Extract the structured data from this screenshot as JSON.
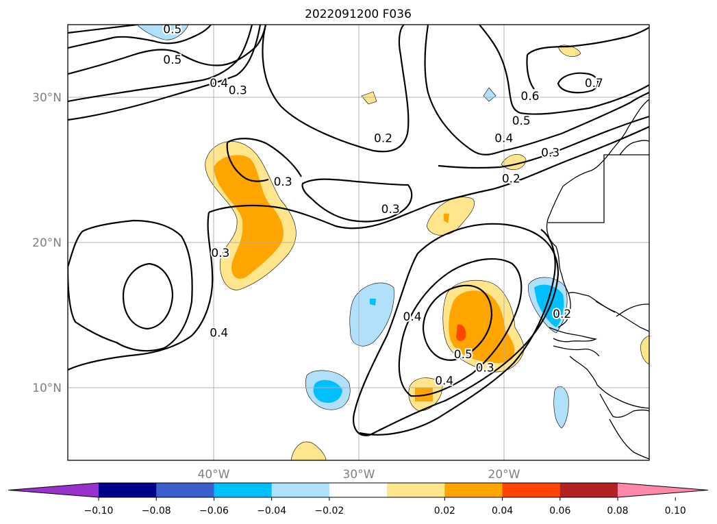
{
  "chart_data": {
    "type": "contour-map",
    "title": "2022091200 F036",
    "lon_range": [
      -50,
      -10
    ],
    "lat_range": [
      5,
      35
    ],
    "grid": true,
    "x_ticks": [
      {
        "lon": -40,
        "label": "40°W"
      },
      {
        "lon": -30,
        "label": "30°W"
      },
      {
        "lon": -20,
        "label": "20°W"
      }
    ],
    "y_ticks": [
      {
        "lat": 10,
        "label": "10°N"
      },
      {
        "lat": 20,
        "label": "20°N"
      },
      {
        "lat": 30,
        "label": "30°N"
      }
    ],
    "colorbar": {
      "boundaries": [
        -0.1,
        -0.08,
        -0.06,
        -0.04,
        -0.02,
        0.02,
        0.04,
        0.06,
        0.08,
        0.1
      ],
      "tick_labels": [
        "−0.10",
        "−0.08",
        "−0.06",
        "−0.04",
        "−0.02",
        "0.02",
        "0.04",
        "0.06",
        "0.08",
        "0.10"
      ],
      "colors": [
        "#9932cc",
        "#00008b",
        "#3a5fcd",
        "#00bfff",
        "#b0e0fa",
        "#ffffff",
        "#ffe68c",
        "#ffa500",
        "#ff4500",
        "#b22222",
        "#ff88aa"
      ]
    },
    "contour_labels": [
      {
        "text": "0.5",
        "lon": -42.8,
        "lat": 34.7
      },
      {
        "text": "0.5",
        "lon": -42.8,
        "lat": 32.6
      },
      {
        "text": "0.4",
        "lon": -39.6,
        "lat": 31.0
      },
      {
        "text": "0.3",
        "lon": -38.3,
        "lat": 30.5
      },
      {
        "text": "0.2",
        "lon": -28.3,
        "lat": 27.2
      },
      {
        "text": "0.3",
        "lon": -35.2,
        "lat": 24.2
      },
      {
        "text": "0.3",
        "lon": -39.5,
        "lat": 19.3
      },
      {
        "text": "0.4",
        "lon": -39.6,
        "lat": 13.8
      },
      {
        "text": "0.3",
        "lon": -27.8,
        "lat": 22.3
      },
      {
        "text": "0.2",
        "lon": -19.5,
        "lat": 24.4
      },
      {
        "text": "0.3",
        "lon": -16.8,
        "lat": 26.2
      },
      {
        "text": "0.4",
        "lon": -20.0,
        "lat": 27.2
      },
      {
        "text": "0.5",
        "lon": -18.8,
        "lat": 28.4
      },
      {
        "text": "0.6",
        "lon": -18.2,
        "lat": 30.1
      },
      {
        "text": "0.7",
        "lon": -13.8,
        "lat": 31.0
      },
      {
        "text": "0.2",
        "lon": -16.0,
        "lat": 15.1
      },
      {
        "text": "0.4",
        "lon": -26.3,
        "lat": 14.9
      },
      {
        "text": "0.5",
        "lon": -22.8,
        "lat": 12.3
      },
      {
        "text": "0.3",
        "lon": -21.3,
        "lat": 11.4
      },
      {
        "text": "0.4",
        "lon": -24.1,
        "lat": 10.5
      }
    ]
  }
}
